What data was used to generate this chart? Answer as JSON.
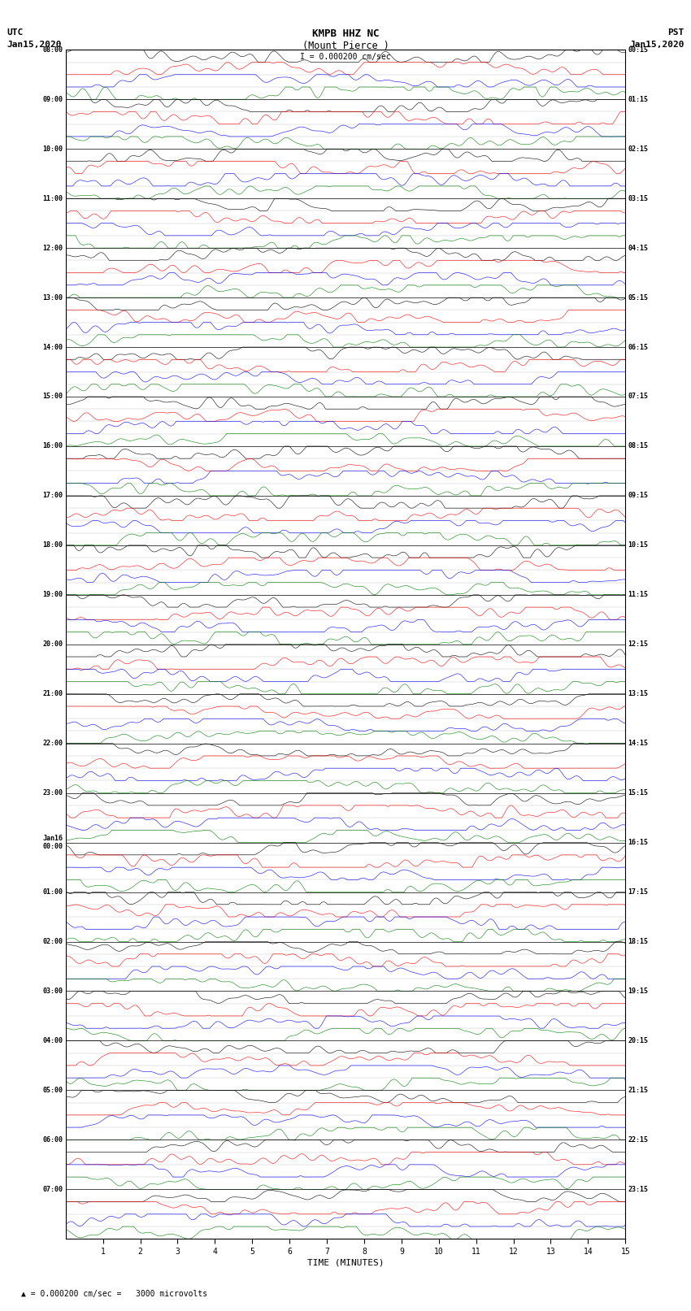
{
  "title_line1": "KMPB HHZ NC",
  "title_line2": "(Mount Pierce )",
  "scale_label": "I = 0.000200 cm/sec",
  "utc_label_line1": "UTC",
  "utc_label_line2": "Jan15,2020",
  "pst_label_line1": "PST",
  "pst_label_line2": "Jan15,2020",
  "bottom_label": "TIME (MINUTES)",
  "bottom_note": "= 0.000200 cm/sec =   3000 microvolts",
  "left_times": [
    "08:00",
    "09:00",
    "10:00",
    "11:00",
    "12:00",
    "13:00",
    "14:00",
    "15:00",
    "16:00",
    "17:00",
    "18:00",
    "19:00",
    "20:00",
    "21:00",
    "22:00",
    "23:00",
    "Jan16\n00:00",
    "01:00",
    "02:00",
    "03:00",
    "04:00",
    "05:00",
    "06:00",
    "07:00"
  ],
  "right_times": [
    "00:15",
    "01:15",
    "02:15",
    "03:15",
    "04:15",
    "05:15",
    "06:15",
    "07:15",
    "08:15",
    "09:15",
    "10:15",
    "11:15",
    "12:15",
    "13:15",
    "14:15",
    "15:15",
    "16:15",
    "17:15",
    "18:15",
    "19:15",
    "20:15",
    "21:15",
    "22:15",
    "23:15"
  ],
  "num_rows": 24,
  "traces_per_row": 4,
  "x_tick_labels": [
    "1",
    "2",
    "3",
    "4",
    "5",
    "6",
    "7",
    "8",
    "9",
    "10",
    "11",
    "12",
    "13",
    "14",
    "15"
  ],
  "colors": [
    "black",
    "red",
    "blue",
    "green"
  ],
  "bg_color": "white",
  "fig_width": 8.5,
  "fig_height": 16.13,
  "samples_per_trace": 4500,
  "trace_amplitude_scale": 0.55,
  "linewidth": 0.4
}
